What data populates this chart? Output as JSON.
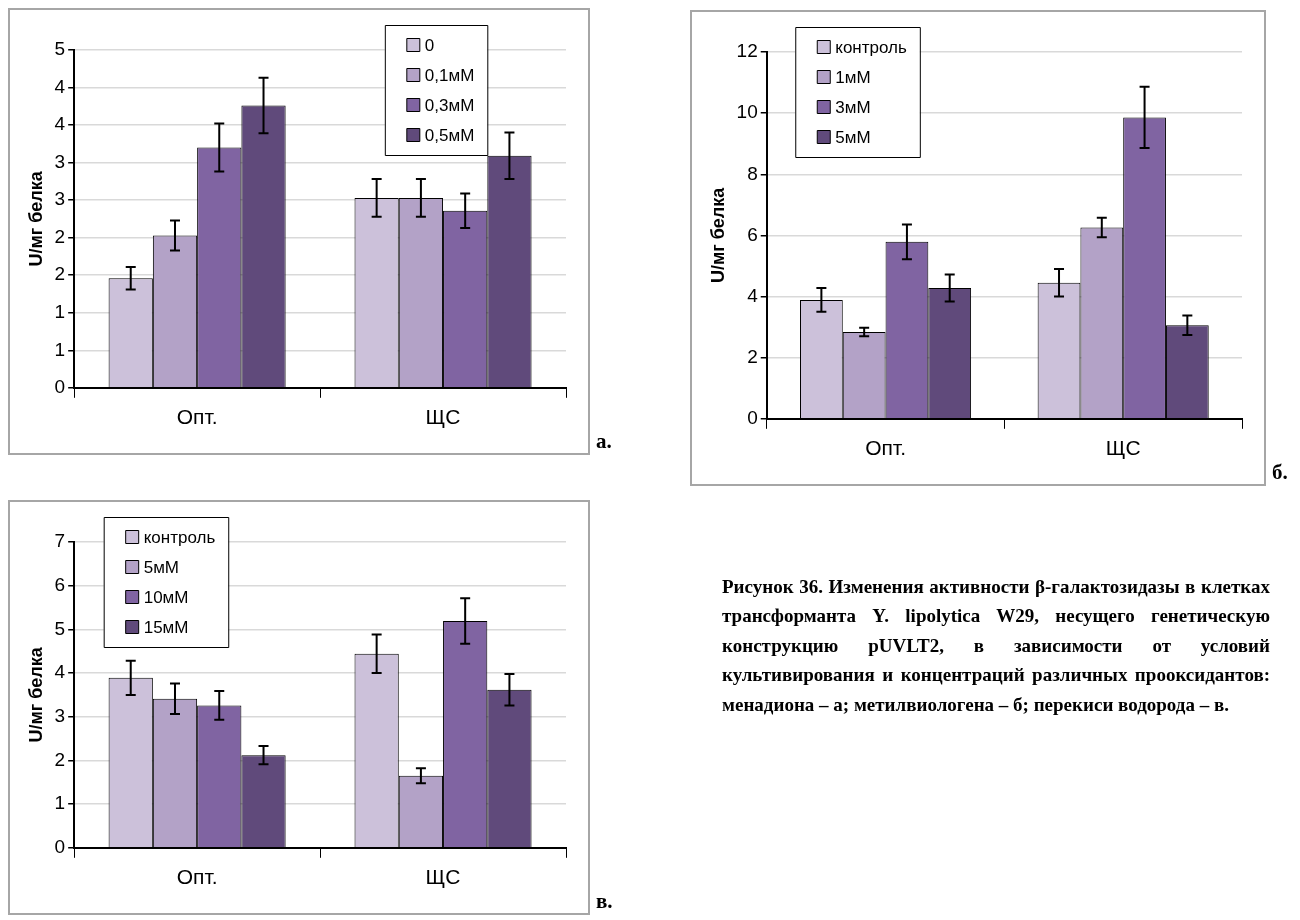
{
  "chart_data": [
    {
      "type": "bar",
      "ylabel": "U/мг белка",
      "categories": [
        "Опт.",
        "ЩС"
      ],
      "ylim": [
        0,
        4.5
      ],
      "yticks": [
        0,
        {
          "value": 0.5,
          "label": "1"
        },
        1,
        {
          "value": 1.5,
          "label": "2"
        },
        2,
        {
          "value": 2.5,
          "label": "3"
        },
        3,
        {
          "value": 3.5,
          "label": "4"
        },
        4,
        {
          "value": 4.5,
          "label": "5"
        }
      ],
      "grid": "y",
      "legend": "top right",
      "annotations": [
        "а."
      ],
      "series": [
        {
          "name": "0",
          "color": "#ccc1da",
          "values": [
            1.46,
            2.53
          ],
          "errors": [
            0.15,
            0.25
          ]
        },
        {
          "name": "0,1мМ",
          "color": "#b3a2c7",
          "values": [
            2.03,
            2.53
          ],
          "errors": [
            0.2,
            0.25
          ]
        },
        {
          "name": "0,3мМ",
          "color": "#8064a2",
          "values": [
            3.2,
            2.36
          ],
          "errors": [
            0.32,
            0.23
          ]
        },
        {
          "name": "0,5мМ",
          "color": "#604a7b",
          "values": [
            3.76,
            3.09
          ],
          "errors": [
            0.37,
            0.31
          ]
        }
      ]
    },
    {
      "type": "bar",
      "ylabel": "U/мг белка",
      "categories": [
        "Опт.",
        "ЩС"
      ],
      "ylim": [
        0,
        12
      ],
      "yticks": [
        0,
        2,
        4,
        6,
        8,
        10,
        12
      ],
      "grid": "y",
      "legend": "top left",
      "annotations": [
        "б."
      ],
      "series": [
        {
          "name": "контроль",
          "color": "#ccc1da",
          "values": [
            3.89,
            4.45
          ],
          "errors": [
            0.39,
            0.45
          ]
        },
        {
          "name": "1мМ",
          "color": "#b3a2c7",
          "values": [
            2.84,
            6.26
          ],
          "errors": [
            0.14,
            0.32
          ]
        },
        {
          "name": "3мМ",
          "color": "#8064a2",
          "values": [
            5.79,
            9.86
          ],
          "errors": [
            0.57,
            1.0
          ]
        },
        {
          "name": "5мМ",
          "color": "#604a7b",
          "values": [
            4.28,
            3.06
          ],
          "errors": [
            0.44,
            0.32
          ]
        }
      ]
    },
    {
      "type": "bar",
      "ylabel": "U/мг белка",
      "categories": [
        "Опт.",
        "ЩС"
      ],
      "ylim": [
        0,
        7
      ],
      "yticks": [
        0,
        1,
        2,
        3,
        4,
        5,
        6,
        7
      ],
      "grid": "y",
      "legend": "top left",
      "annotations": [
        "в."
      ],
      "series": [
        {
          "name": "контроль",
          "color": "#ccc1da",
          "values": [
            3.89,
            4.44
          ],
          "errors": [
            0.39,
            0.44
          ]
        },
        {
          "name": "5мМ",
          "color": "#b3a2c7",
          "values": [
            3.41,
            1.65
          ],
          "errors": [
            0.35,
            0.17
          ]
        },
        {
          "name": "10мМ",
          "color": "#8064a2",
          "values": [
            3.26,
            5.19
          ],
          "errors": [
            0.33,
            0.52
          ]
        },
        {
          "name": "15мМ",
          "color": "#604a7b",
          "values": [
            2.12,
            3.62
          ],
          "errors": [
            0.21,
            0.36
          ]
        }
      ]
    },
    {
      "type": "other",
      "annotations": [
        "Рисунок 36. Изменения активности β-галактозидазы в клетках трансформанта Y. lipolytica W29, несущего генетическую конструкцию pUVLT2, в зависимости от условий культивирования и концентраций различных прооксидантов: менадиона – а; метилвиологена – б; перекиси водорода – в."
      ]
    }
  ]
}
